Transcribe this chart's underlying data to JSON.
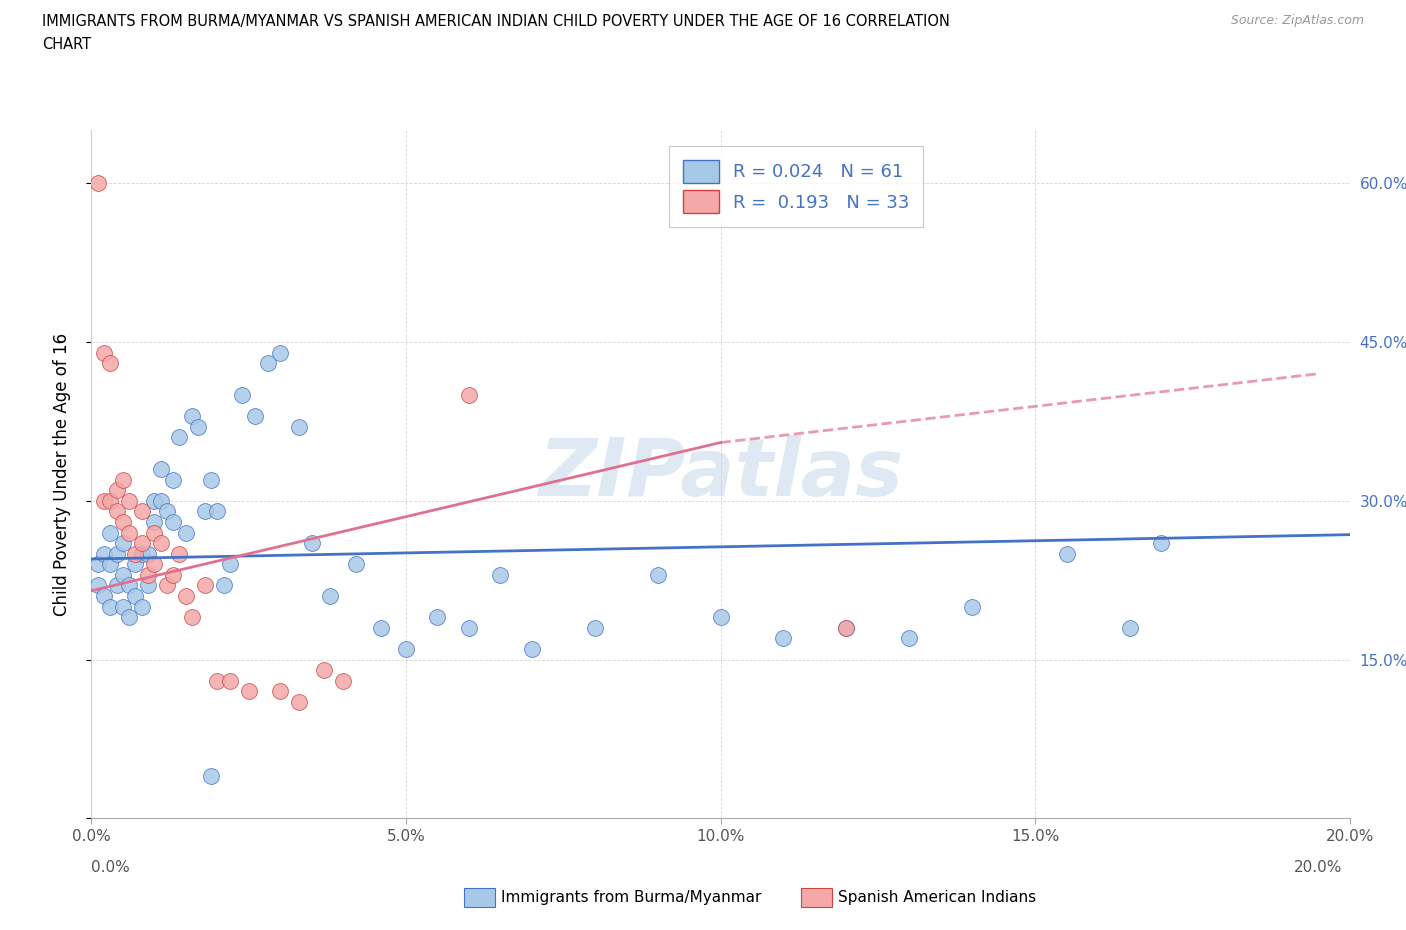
{
  "title_line1": "IMMIGRANTS FROM BURMA/MYANMAR VS SPANISH AMERICAN INDIAN CHILD POVERTY UNDER THE AGE OF 16 CORRELATION",
  "title_line2": "CHART",
  "source": "Source: ZipAtlas.com",
  "ylabel": "Child Poverty Under the Age of 16",
  "xlim": [
    0.0,
    0.2
  ],
  "ylim": [
    0.0,
    0.65
  ],
  "xtick_vals": [
    0.0,
    0.05,
    0.1,
    0.15,
    0.2
  ],
  "xtick_labels": [
    "0.0%",
    "5.0%",
    "10.0%",
    "15.0%",
    "20.0%"
  ],
  "right_ytick_vals": [
    0.15,
    0.3,
    0.45,
    0.6
  ],
  "right_ytick_labels": [
    "15.0%",
    "30.0%",
    "45.0%",
    "60.0%"
  ],
  "blue_face": "#a8c8e8",
  "blue_edge": "#4472c4",
  "pink_face": "#f4a8a8",
  "pink_edge": "#cc4444",
  "blue_line": "#4472c4",
  "pink_line": "#e07090",
  "R_blue": 0.024,
  "N_blue": 61,
  "R_pink": 0.193,
  "N_pink": 33,
  "watermark": "ZIPatlas",
  "legend_label1": "Immigrants from Burma/Myanmar",
  "legend_label2": "Spanish American Indians",
  "blue_x": [
    0.001,
    0.001,
    0.002,
    0.002,
    0.003,
    0.003,
    0.003,
    0.004,
    0.004,
    0.005,
    0.005,
    0.005,
    0.006,
    0.006,
    0.007,
    0.007,
    0.008,
    0.008,
    0.009,
    0.009,
    0.01,
    0.01,
    0.011,
    0.011,
    0.012,
    0.013,
    0.013,
    0.014,
    0.015,
    0.016,
    0.017,
    0.018,
    0.019,
    0.02,
    0.021,
    0.022,
    0.024,
    0.026,
    0.028,
    0.03,
    0.033,
    0.035,
    0.038,
    0.042,
    0.046,
    0.05,
    0.055,
    0.06,
    0.065,
    0.07,
    0.08,
    0.09,
    0.1,
    0.11,
    0.12,
    0.13,
    0.14,
    0.155,
    0.165,
    0.17,
    0.019
  ],
  "blue_y": [
    0.22,
    0.24,
    0.21,
    0.25,
    0.2,
    0.24,
    0.27,
    0.22,
    0.25,
    0.2,
    0.23,
    0.26,
    0.19,
    0.22,
    0.21,
    0.24,
    0.2,
    0.25,
    0.22,
    0.25,
    0.28,
    0.3,
    0.3,
    0.33,
    0.29,
    0.28,
    0.32,
    0.36,
    0.27,
    0.38,
    0.37,
    0.29,
    0.32,
    0.29,
    0.22,
    0.24,
    0.4,
    0.38,
    0.43,
    0.44,
    0.37,
    0.26,
    0.21,
    0.24,
    0.18,
    0.16,
    0.19,
    0.18,
    0.23,
    0.16,
    0.18,
    0.23,
    0.19,
    0.17,
    0.18,
    0.17,
    0.2,
    0.25,
    0.18,
    0.26,
    0.04
  ],
  "pink_x": [
    0.001,
    0.002,
    0.002,
    0.003,
    0.003,
    0.004,
    0.004,
    0.005,
    0.005,
    0.006,
    0.006,
    0.007,
    0.008,
    0.008,
    0.009,
    0.01,
    0.01,
    0.011,
    0.012,
    0.013,
    0.014,
    0.015,
    0.016,
    0.018,
    0.02,
    0.022,
    0.025,
    0.03,
    0.033,
    0.037,
    0.04,
    0.06,
    0.12
  ],
  "pink_y": [
    0.6,
    0.44,
    0.3,
    0.43,
    0.3,
    0.29,
    0.31,
    0.28,
    0.32,
    0.27,
    0.3,
    0.25,
    0.26,
    0.29,
    0.23,
    0.24,
    0.27,
    0.26,
    0.22,
    0.23,
    0.25,
    0.21,
    0.19,
    0.22,
    0.13,
    0.13,
    0.12,
    0.12,
    0.11,
    0.14,
    0.13,
    0.4,
    0.18
  ]
}
